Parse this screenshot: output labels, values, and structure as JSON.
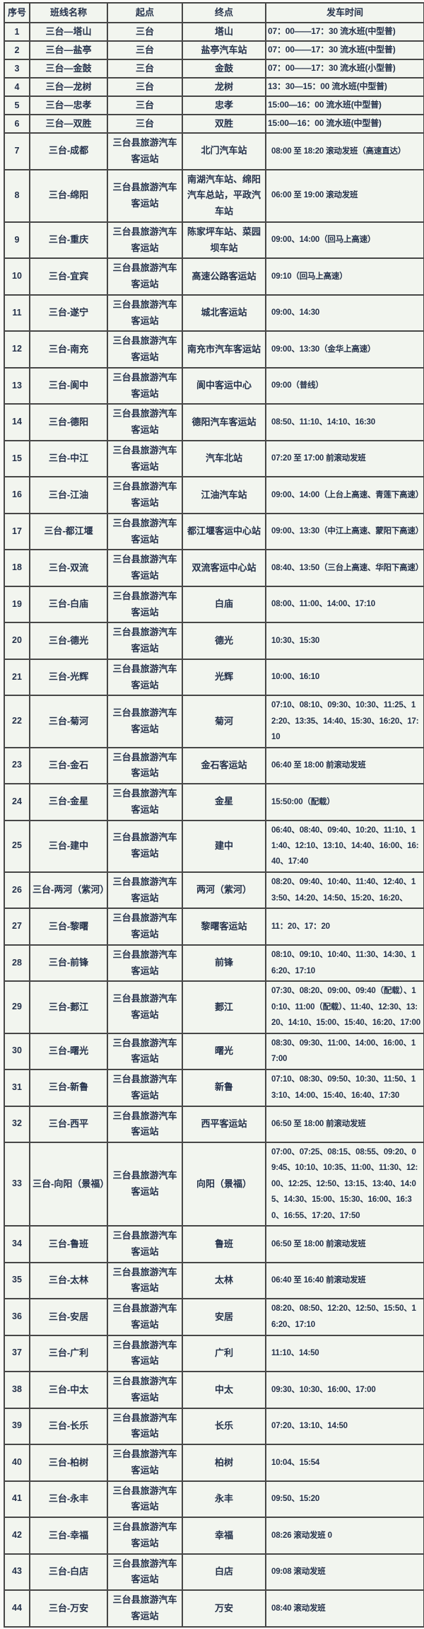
{
  "table": {
    "headers": {
      "no": "序号",
      "route": "班线名称",
      "origin": "起点",
      "dest": "终点",
      "time": "发车时间"
    },
    "rows": [
      {
        "no": "1",
        "route": "三台—塔山",
        "origin": "三台",
        "dest": "塔山",
        "time": "07：00——17：30 流水班(中型普)",
        "style": "compact"
      },
      {
        "no": "2",
        "route": "三台—盐亭",
        "origin": "三台",
        "dest": "盐亭汽车站",
        "time": "07：00——17：30 流水班(中型普)",
        "style": "compact"
      },
      {
        "no": "3",
        "route": "三台—金鼓",
        "origin": "三台",
        "dest": "金鼓",
        "time": "07：00——17：30 流水班(小型普)",
        "style": "compact"
      },
      {
        "no": "4",
        "route": "三台—龙树",
        "origin": "三台",
        "dest": "龙树",
        "time": "13：30—15：00 流水班(中型普)",
        "style": "compact"
      },
      {
        "no": "5",
        "route": "三台—忠孝",
        "origin": "三台",
        "dest": "忠孝",
        "time": "15:00—16：00 流水班(中型普)",
        "style": "compact"
      },
      {
        "no": "6",
        "route": "三台—双胜",
        "origin": "三台",
        "dest": "双胜",
        "time": "15:00—16：00 流水班(中型普)",
        "style": "compact"
      },
      {
        "no": "7",
        "route": "三台-成都",
        "origin": "三台县旅游汽车客运站",
        "dest": "北门汽车站",
        "time": "08:00 至 18:20 滚动发班（高速直达）",
        "style": "normal"
      },
      {
        "no": "8",
        "route": "三台-绵阳",
        "origin": "三台县旅游汽车客运站",
        "dest": "南湖汽车站、绵阳汽车总站，平政汽车站",
        "time": "06:00 至 19:00 滚动发班",
        "style": "normal"
      },
      {
        "no": "9",
        "route": "三台-重庆",
        "origin": "三台县旅游汽车客运站",
        "dest": "陈家坪车站、菜园坝车站",
        "time": "09:00、14:00（回马上高速）",
        "style": "normal"
      },
      {
        "no": "10",
        "route": "三台-宜宾",
        "origin": "三台县旅游汽车客运站",
        "dest": "高速公路客运站",
        "time": "09:10（回马上高速）",
        "style": "normal"
      },
      {
        "no": "11",
        "route": "三台-遂宁",
        "origin": "三台县旅游汽车客运站",
        "dest": "城北客运站",
        "time": "09:00、14:30",
        "style": "normal"
      },
      {
        "no": "12",
        "route": "三台-南充",
        "origin": "三台县旅游汽车客运站",
        "dest": "南充市汽车客运站",
        "time": "09:00、13:30（金华上高速）",
        "style": "normal"
      },
      {
        "no": "13",
        "route": "三台-阆中",
        "origin": "三台县旅游汽车客运站",
        "dest": "阆中客运中心",
        "time": "09:00（普线）",
        "style": "normal"
      },
      {
        "no": "14",
        "route": "三台-德阳",
        "origin": "三台县旅游汽车客运站",
        "dest": "德阳汽车客运站",
        "time": "08:50、11:10、14:10、16:30",
        "style": "normal"
      },
      {
        "no": "15",
        "route": "三台-中江",
        "origin": "三台县旅游汽车客运站",
        "dest": "汽车北站",
        "time": "07:20 至 17:00 前滚动发班",
        "style": "normal"
      },
      {
        "no": "16",
        "route": "三台-江油",
        "origin": "三台县旅游汽车客运站",
        "dest": "江油汽车站",
        "time": "09:00、14:00（上台上高速、青莲下高速）",
        "style": "normal"
      },
      {
        "no": "17",
        "route": "三台-都江堰",
        "origin": "三台县旅游汽车客运站",
        "dest": "都江堰客运中心站",
        "time": "09:00、13:30（中江上高速、蒙阳下高速）",
        "style": "normal"
      },
      {
        "no": "18",
        "route": "三台-双流",
        "origin": "三台县旅游汽车客运站",
        "dest": "双流客运中心站",
        "time": "08:40、13:50（三台上高速、华阳下高速）",
        "style": "normal"
      },
      {
        "no": "19",
        "route": "三台-白庙",
        "origin": "三台县旅游汽车客运站",
        "dest": "白庙",
        "time": "08:00、11:00、14:00、17:10",
        "style": "normal"
      },
      {
        "no": "20",
        "route": "三台-德光",
        "origin": "三台县旅游汽车客运站",
        "dest": "德光",
        "time": "10:30、15:30",
        "style": "normal"
      },
      {
        "no": "21",
        "route": "三台-光辉",
        "origin": "三台县旅游汽车客运站",
        "dest": "光辉",
        "time": "10:00、16:10",
        "style": "normal"
      },
      {
        "no": "22",
        "route": "三台-菊河",
        "origin": "三台县旅游汽车客运站",
        "dest": "菊河",
        "time": "07:10、08:10、09:30、10:30、11:25、12:20、13:35、14:40、15:30、16:20、17:10",
        "style": "normal"
      },
      {
        "no": "23",
        "route": "三台-金石",
        "origin": "三台县旅游汽车客运站",
        "dest": "金石客运站",
        "time": "06:40 至 18:00 前滚动发班",
        "style": "normal"
      },
      {
        "no": "24",
        "route": "三台-金星",
        "origin": "三台县旅游汽车客运站",
        "dest": "金星",
        "time": "15:50:00（配载）",
        "style": "normal"
      },
      {
        "no": "25",
        "route": "三台-建中",
        "origin": "三台县旅游汽车客运站",
        "dest": "建中",
        "time": "06:40、08:40、09:40、10:20、11:10、11:40、12:10、13:10、14:40、16:00、16:40、17:40",
        "style": "normal"
      },
      {
        "no": "26",
        "route": "三台-两河（紫河）",
        "origin": "三台县旅游汽车客运站",
        "dest": "两河（紫河）",
        "time": "08:20、09:40、10:40、11:40、12:40、13:50、14:20、14:50、15:20、16:20、",
        "style": "normal"
      },
      {
        "no": "27",
        "route": "三台-黎曙",
        "origin": "三台县旅游汽车客运站",
        "dest": "黎曙客运站",
        "time": "11：20、17：20",
        "style": "normal"
      },
      {
        "no": "28",
        "route": "三台-前锋",
        "origin": "三台县旅游汽车客运站",
        "dest": "前锋",
        "time": "08:10、09:10、10:40、11:30、14:30、16:20、17:10",
        "style": "normal"
      },
      {
        "no": "29",
        "route": "三台-郪江",
        "origin": "三台县旅游汽车客运站",
        "dest": "郪江",
        "time": "07:30、08:20、09:00、09:40（配载）、10:10、11:00（配载）、11:40、12:30、13:20、14:10、15:00、15:40、16:20、17:00",
        "style": "normal"
      },
      {
        "no": "30",
        "route": "三台-曙光",
        "origin": "三台县旅游汽车客运站",
        "dest": "曙光",
        "time": "08:30、09:30、11:00、14:00、16:00、17:00",
        "style": "normal"
      },
      {
        "no": "31",
        "route": "三台-新鲁",
        "origin": "三台县旅游汽车客运站",
        "dest": "新鲁",
        "time": "07:10、08:30、09:50、10:30、11:50、13:10、14:00、15:40、16:40、17:30",
        "style": "normal"
      },
      {
        "no": "32",
        "route": "三台-西平",
        "origin": "三台县旅游汽车客运站",
        "dest": "西平客运站",
        "time": "06:50 至 18:00 前滚动发班",
        "style": "normal"
      },
      {
        "no": "33",
        "route": "三台-向阳（景福）",
        "origin": "三台县旅游汽车客运站",
        "dest": "向阳（景福）",
        "time": "07:00、07:25、08:15、08:55、09:20、09:45、10:10、10:35、11:00、11:30、12:00、12:25、12:50、13:15、13:40、14:05、14:30、15:00、15:30、16:00、16:30、16:55、17:20、17:50",
        "style": "normal"
      },
      {
        "no": "34",
        "route": "三台-鲁班",
        "origin": "三台县旅游汽车客运站",
        "dest": "鲁班",
        "time": "06:50 至 18:00 前滚动发班",
        "style": "normal"
      },
      {
        "no": "35",
        "route": "三台-太林",
        "origin": "三台县旅游汽车客运站",
        "dest": "太林",
        "time": "06:40 至 16:40 前滚动发班",
        "style": "normal"
      },
      {
        "no": "36",
        "route": "三台-安居",
        "origin": "三台县旅游汽车客运站",
        "dest": "安居",
        "time": "08:20、08:50、12:20、12:50、15:50、16:20、17:10",
        "style": "normal"
      },
      {
        "no": "37",
        "route": "三台-广利",
        "origin": "三台县旅游汽车客运站",
        "dest": "广利",
        "time": "11:10、14:50",
        "style": "normal"
      },
      {
        "no": "38",
        "route": "三台-中太",
        "origin": "三台县旅游汽车客运站",
        "dest": "中太",
        "time": "09:30、10:30、16:00、17:00",
        "style": "normal"
      },
      {
        "no": "39",
        "route": "三台-长乐",
        "origin": "三台县旅游汽车客运站",
        "dest": "长乐",
        "time": "07:20、13:10、14:50",
        "style": "normal"
      },
      {
        "no": "40",
        "route": "三台-柏树",
        "origin": "三台县旅游汽车客运站",
        "dest": "柏树",
        "time": "10:04、15:54",
        "style": "normal"
      },
      {
        "no": "41",
        "route": "三台-永丰",
        "origin": "三台县旅游汽车客运站",
        "dest": "永丰",
        "time": "09:50、15:20",
        "style": "normal"
      },
      {
        "no": "42",
        "route": "三台-幸福",
        "origin": "三台县旅游汽车客运站",
        "dest": "幸福",
        "time": "08:26 滚动发班 0",
        "style": "normal"
      },
      {
        "no": "43",
        "route": "三台-白店",
        "origin": "三台县旅游汽车客运站",
        "dest": "白店",
        "time": "09:08 滚动发班",
        "style": "normal"
      },
      {
        "no": "44",
        "route": "三台-万安",
        "origin": "三台县旅游汽车客运站",
        "dest": "万安",
        "time": "08:40 滚动发班",
        "style": "normal"
      }
    ]
  }
}
